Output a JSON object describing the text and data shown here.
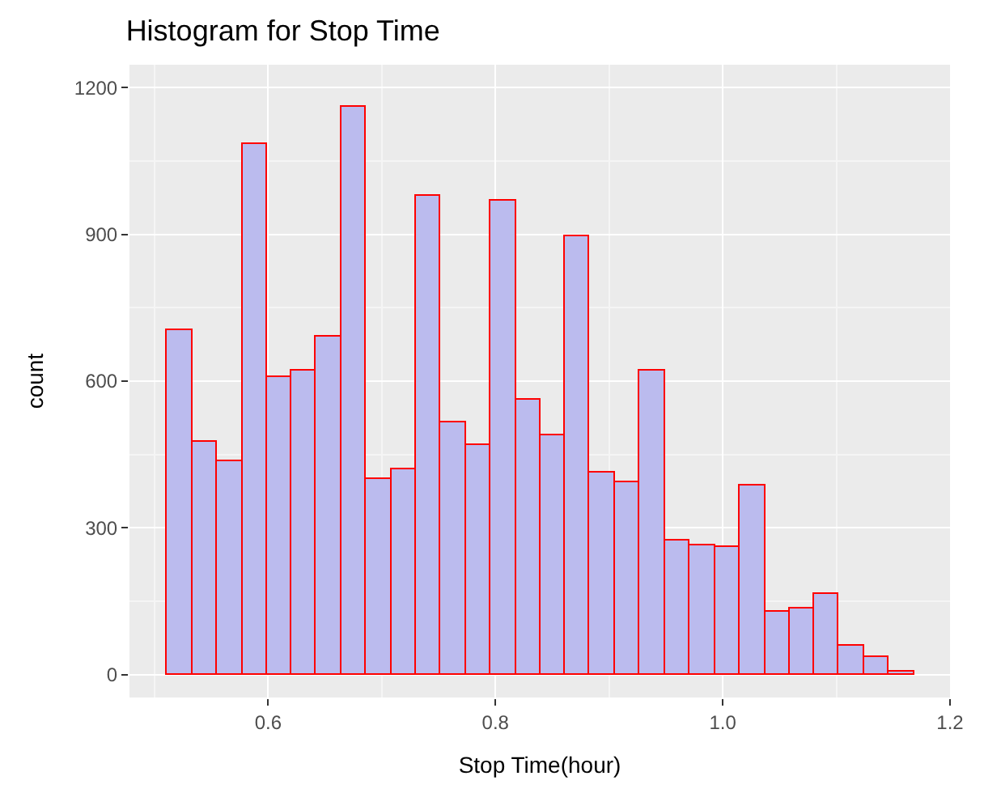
{
  "chart_data": {
    "type": "histogram",
    "title": "Histogram for Stop Time",
    "xlabel": "Stop Time(hour)",
    "ylabel": "count",
    "bins": [
      0.511,
      0.533,
      0.555,
      0.577,
      0.599,
      0.621,
      0.642,
      0.664,
      0.686,
      0.708,
      0.73,
      0.752,
      0.774,
      0.796,
      0.818,
      0.84,
      0.861,
      0.883,
      0.905,
      0.927,
      0.949,
      0.971,
      0.993,
      1.015,
      1.037,
      1.059,
      1.08,
      1.102,
      1.124,
      1.146,
      1.168
    ],
    "values": [
      705,
      475,
      435,
      1085,
      607,
      623,
      692,
      1160,
      400,
      420,
      980,
      515,
      470,
      970,
      562,
      490,
      897,
      413,
      393,
      620,
      273,
      263,
      260,
      385,
      130,
      135,
      165,
      60,
      35,
      5
    ],
    "color": "#bbbbee",
    "xlim": [
      0.478,
      1.2
    ],
    "xticks": [
      0.6,
      0.8,
      {
        "value": 1,
        "label": "1.0"
      },
      1.2
    ],
    "ylim": [
      -47,
      1247
    ],
    "yticks": [
      0,
      300,
      600,
      900,
      1200
    ],
    "grid": true
  }
}
